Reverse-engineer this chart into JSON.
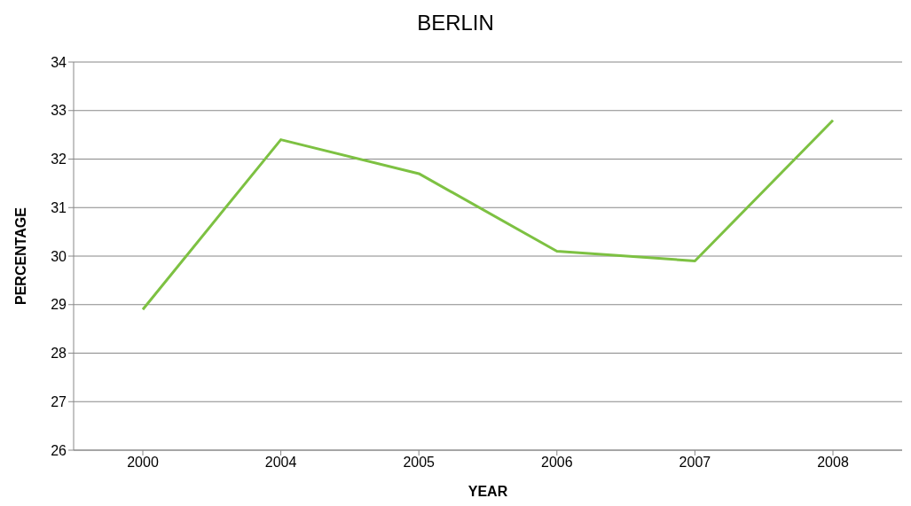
{
  "chart_data": {
    "type": "line",
    "title": "BERLIN",
    "xlabel": "YEAR",
    "ylabel": "PERCENTAGE",
    "categories": [
      "2000",
      "2004",
      "2005",
      "2006",
      "2007",
      "2008"
    ],
    "series": [
      {
        "color": "#7dc142",
        "values": [
          28.9,
          32.4,
          31.7,
          30.1,
          29.9,
          32.8
        ]
      }
    ],
    "ylim": [
      26,
      34
    ],
    "yticks": [
      26,
      27,
      28,
      29,
      30,
      31,
      32,
      33,
      34
    ],
    "grid": "y",
    "legend": false,
    "marker": "none",
    "line_style": "solid"
  }
}
